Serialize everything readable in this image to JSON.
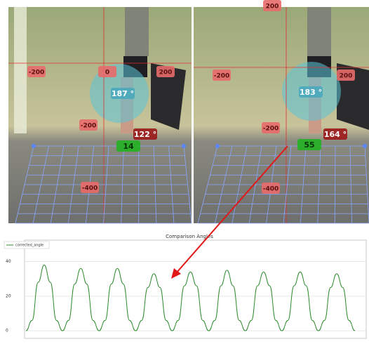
{
  "frames": [
    {
      "labels": [
        "-200",
        "0",
        "200",
        "187 °",
        "-200",
        "122 °",
        "14",
        "-400"
      ]
    },
    {
      "labels": [
        "200",
        "-200",
        "200",
        "183 °",
        "-200",
        "164 °",
        "55",
        "-400"
      ]
    }
  ],
  "chart_data": {
    "type": "line",
    "title": "Comparison Angles",
    "series": [
      {
        "name": "corrected_angle",
        "color": "#2e8b2e",
        "values": [
          0,
          6,
          28,
          38,
          28,
          6,
          0,
          6,
          27,
          36,
          27,
          6,
          0,
          6,
          27,
          36,
          27,
          6,
          0,
          6,
          25,
          33,
          25,
          6,
          0,
          6,
          26,
          34,
          26,
          6,
          0,
          6,
          26,
          35,
          26,
          6,
          0,
          6,
          26,
          34,
          26,
          6,
          0,
          6,
          26,
          34,
          26,
          6,
          0,
          6,
          25,
          33,
          25,
          6,
          0
        ]
      }
    ],
    "ylim": [
      -4.4,
      52.4
    ],
    "yticks": [
      0,
      20,
      40
    ],
    "grid": true
  }
}
